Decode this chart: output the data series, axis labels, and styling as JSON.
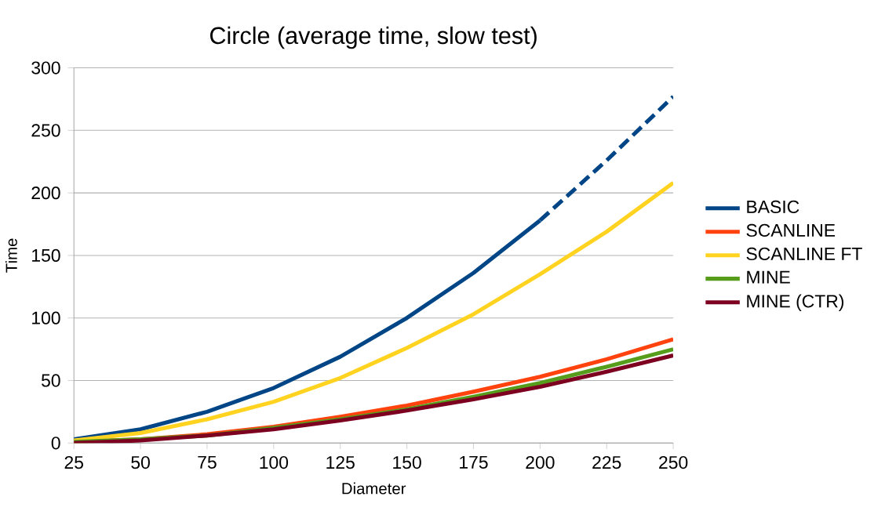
{
  "chart_data": {
    "type": "line",
    "title": "Circle (average time, slow test)",
    "xlabel": "Diameter",
    "ylabel": "Time",
    "x": [
      25,
      50,
      75,
      100,
      125,
      150,
      175,
      200,
      225,
      250
    ],
    "series": [
      {
        "name": "BASIC",
        "color": "#004586",
        "x": [
          25,
          50,
          75,
          100,
          125,
          150,
          175,
          200
        ],
        "values": [
          3,
          11,
          25,
          44,
          69,
          100,
          136,
          178
        ]
      },
      {
        "name": "SCANLINE",
        "color": "#ff420e",
        "values": [
          1,
          3,
          7,
          13,
          21,
          30,
          41,
          53,
          67,
          83
        ]
      },
      {
        "name": "SCANLINE FT",
        "color": "#ffd320",
        "values": [
          2,
          8,
          19,
          33,
          52,
          76,
          103,
          135,
          169,
          208
        ]
      },
      {
        "name": "MINE",
        "color": "#579d1c",
        "values": [
          1,
          3,
          6,
          12,
          19,
          27,
          37,
          48,
          61,
          75
        ]
      },
      {
        "name": "MINE (CTR)",
        "color": "#7e0021",
        "values": [
          0,
          2,
          6,
          11,
          18,
          26,
          35,
          45,
          57,
          70
        ]
      },
      {
        "color": "#004586",
        "line_style": "dashed",
        "x": [
          200,
          225,
          250
        ],
        "values": [
          178,
          226,
          277
        ]
      }
    ],
    "xlim": [
      25,
      250
    ],
    "ylim": [
      0,
      300
    ],
    "xticks": [
      25,
      50,
      75,
      100,
      125,
      150,
      175,
      200,
      225,
      250
    ],
    "yticks": [
      0,
      50,
      100,
      150,
      200,
      250,
      300
    ],
    "grid": "y",
    "legend": "right",
    "marker": "none",
    "line_style": "solid"
  }
}
